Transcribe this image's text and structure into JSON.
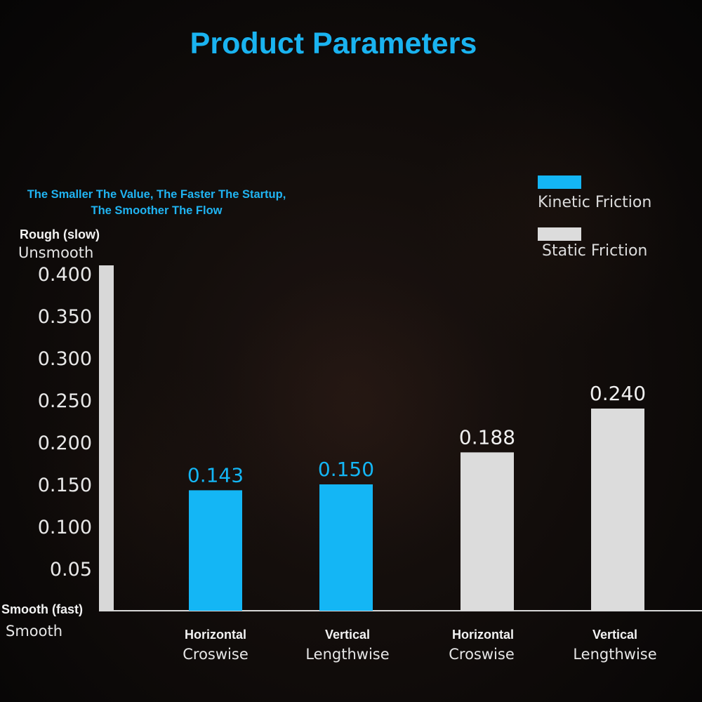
{
  "title": "Product Parameters",
  "note": {
    "line1": "The Smaller The Value, The Faster The Startup,",
    "line2": "The Smoother The Flow"
  },
  "y_axis": {
    "top_label": "Rough (slow)",
    "top_sublabel": "Unsmooth",
    "bottom_label": "Smooth (fast)",
    "bottom_sublabel": "Smooth"
  },
  "colors": {
    "title": "#1ab3f0",
    "kinetic": "#14b6f5",
    "static": "#dcdcdc",
    "axis": "#d8d8d8"
  },
  "chart_data": {
    "type": "bar",
    "title": "Product Parameters",
    "ylim": [
      0,
      0.42
    ],
    "yticks": [
      {
        "value": 0.05,
        "label": "0.05"
      },
      {
        "value": 0.1,
        "label": "0.100"
      },
      {
        "value": 0.15,
        "label": "0.150"
      },
      {
        "value": 0.2,
        "label": "0.200"
      },
      {
        "value": 0.25,
        "label": "0.250"
      },
      {
        "value": 0.3,
        "label": "0.300"
      },
      {
        "value": 0.35,
        "label": "0.350"
      },
      {
        "value": 0.4,
        "label": "0.400"
      }
    ],
    "categories": [
      {
        "top": "Horizontal",
        "bottom": "Croswise"
      },
      {
        "top": "Vertical",
        "bottom": "Lengthwise"
      },
      {
        "top": "Horizontal",
        "bottom": "Croswise"
      },
      {
        "top": "Vertical",
        "bottom": "Lengthwise"
      }
    ],
    "bars": [
      {
        "series": "Kinetic Friction",
        "value": 0.143,
        "label": "0.143"
      },
      {
        "series": "Kinetic Friction",
        "value": 0.15,
        "label": "0.150"
      },
      {
        "series": "Static Friction",
        "value": 0.188,
        "label": "0.188"
      },
      {
        "series": "Static Friction",
        "value": 0.24,
        "label": "0.240"
      }
    ],
    "series": [
      {
        "name": "Kinetic Friction",
        "color": "#14b6f5"
      },
      {
        "name": "Static Friction",
        "color": "#dcdcdc"
      }
    ],
    "legend_position": "top-right",
    "grid": false
  }
}
